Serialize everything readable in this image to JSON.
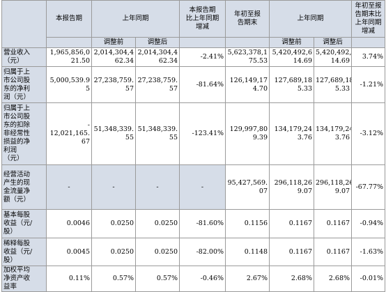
{
  "header": {
    "current_period": "本报告期",
    "prior_year_period": "上年同期",
    "yoy_change": [
      "本报告期",
      "比上年同期",
      "增减"
    ],
    "ytd_current": [
      "年初至报",
      "告期末"
    ],
    "prior_year_ytd": "上年同期",
    "ytd_change": [
      "年初至报",
      "告期末比",
      "上年同期",
      "增减"
    ],
    "before_adjust": "调整前",
    "after_adjust": "调整后"
  },
  "rows": [
    {
      "label": [
        "营业收入",
        "（元）"
      ],
      "current": [
        "1,965,856,0",
        "21.50"
      ],
      "prior_before": [
        "2,014,304,4",
        "62.34"
      ],
      "prior_after": [
        "2,014,304,4",
        "62.34"
      ],
      "yoy": "-2.41%",
      "ytd": [
        "5,623,378,1",
        "75.53"
      ],
      "ytd_prior_before": [
        "5,420,492,6",
        "14.69"
      ],
      "ytd_prior_after": [
        "5,420,492,6",
        "14.69"
      ],
      "ytd_yoy": "3.74%"
    },
    {
      "label": [
        "归属于上",
        "市公司股",
        "东的净利",
        "润（元）"
      ],
      "current": [
        "5,000,539.9",
        "5"
      ],
      "prior_before": [
        "27,238,759.",
        "57"
      ],
      "prior_after": [
        "27,238,759.",
        "57"
      ],
      "yoy": "-81.64%",
      "ytd": [
        "126,149,17",
        "4.70"
      ],
      "ytd_prior_before": [
        "127,689,18",
        "5.33"
      ],
      "ytd_prior_after": [
        "127,689,18",
        "5.33"
      ],
      "ytd_yoy": "-1.21%"
    },
    {
      "label": [
        "归属于上",
        "市公司股",
        "东的扣除",
        "非经常性",
        "损益的净",
        "利润",
        "（元）"
      ],
      "current": [
        "-",
        "12,021,165.",
        "67"
      ],
      "prior_before": [
        "51,348,339.",
        "55"
      ],
      "prior_after": [
        "51,348,339.",
        "55"
      ],
      "yoy": "-123.41%",
      "ytd": [
        "129,997,80",
        "9.39"
      ],
      "ytd_prior_before": [
        "134,179,24",
        "3.76"
      ],
      "ytd_prior_after": [
        "134,179,24",
        "3.76"
      ],
      "ytd_yoy": "-3.12%"
    },
    {
      "label": [
        "经营活动",
        "产生的现",
        "金流量净",
        "额（元）"
      ],
      "current": [
        "-"
      ],
      "prior_before": [
        "-"
      ],
      "prior_after": [
        "-"
      ],
      "yoy": "-",
      "ytd": [
        "95,427,569.",
        "07"
      ],
      "ytd_prior_before": [
        "296,118,26",
        "9.07"
      ],
      "ytd_prior_after": [
        "296,118,26",
        "9.07"
      ],
      "ytd_yoy": "-67.77%"
    },
    {
      "label": [
        "基本每股",
        "收益（元/",
        "股）"
      ],
      "current": [
        "0.0046"
      ],
      "prior_before": [
        "0.0250"
      ],
      "prior_after": [
        "0.0250"
      ],
      "yoy": "-81.60%",
      "ytd": [
        "0.1156"
      ],
      "ytd_prior_before": [
        "0.1167"
      ],
      "ytd_prior_after": [
        "0.1167"
      ],
      "ytd_yoy": "-0.94%"
    },
    {
      "label": [
        "稀释每股",
        "收益（元/",
        "股）"
      ],
      "current": [
        "0.0045"
      ],
      "prior_before": [
        "0.0250"
      ],
      "prior_after": [
        "0.0250"
      ],
      "yoy": "-82.00%",
      "ytd": [
        "0.1148"
      ],
      "ytd_prior_before": [
        "0.1167"
      ],
      "ytd_prior_after": [
        "0.1167"
      ],
      "ytd_yoy": "-1.63%"
    },
    {
      "label": [
        "加权平均",
        "净资产收",
        "益率"
      ],
      "current": [
        "0.11%"
      ],
      "prior_before": [
        "0.57%"
      ],
      "prior_after": [
        "0.57%"
      ],
      "yoy": "-0.46%",
      "ytd": [
        "2.67%"
      ],
      "ytd_prior_before": [
        "2.68%"
      ],
      "ytd_prior_after": [
        "2.68%"
      ],
      "ytd_yoy": "-0.01%"
    }
  ]
}
